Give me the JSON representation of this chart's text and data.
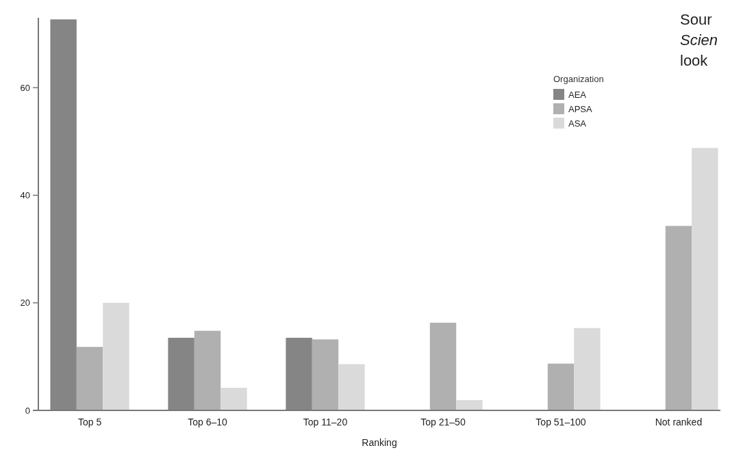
{
  "chart_data": {
    "type": "bar",
    "xlabel": "Ranking",
    "legend_title": "Organization",
    "legend": "top right",
    "categories": [
      "Top 5",
      "Top 6–10",
      "Top 11–20",
      "Top 21–50",
      "Top 51–100",
      "Not ranked"
    ],
    "series": [
      {
        "name": "AEA",
        "color": "#858585",
        "values": [
          72.7,
          13.5,
          13.5,
          null,
          null,
          null
        ]
      },
      {
        "name": "APSA",
        "color": "#b0b0b0",
        "values": [
          11.8,
          14.8,
          13.2,
          16.3,
          8.7,
          34.3
        ]
      },
      {
        "name": "ASA",
        "color": "#dadada",
        "values": [
          20,
          4.2,
          8.6,
          1.9,
          15.3,
          48.8
        ]
      }
    ],
    "ylim": [
      0,
      73
    ],
    "yticks": [
      0,
      20,
      40,
      60
    ],
    "grid": false,
    "annotations": [
      "Sour",
      "Scien",
      "look"
    ]
  }
}
